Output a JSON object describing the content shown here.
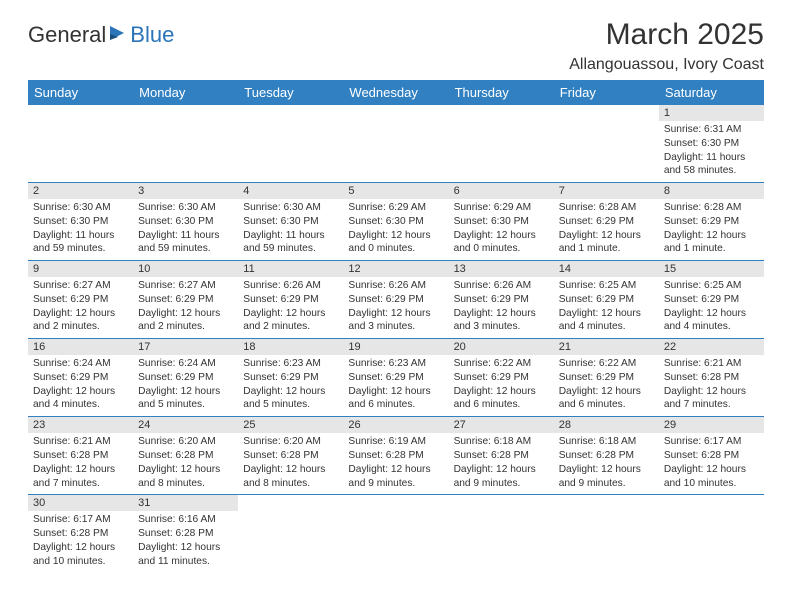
{
  "logo": {
    "general": "General",
    "blue": "Blue"
  },
  "title": "March 2025",
  "location": "Allangouassou, Ivory Coast",
  "header_color": "#3180c2",
  "daynum_bg": "#e6e6e6",
  "text_color": "#333333",
  "days": [
    "Sunday",
    "Monday",
    "Tuesday",
    "Wednesday",
    "Thursday",
    "Friday",
    "Saturday"
  ],
  "weeks": [
    [
      null,
      null,
      null,
      null,
      null,
      null,
      {
        "n": "1",
        "sr": "Sunrise: 6:31 AM",
        "ss": "Sunset: 6:30 PM",
        "dl": "Daylight: 11 hours and 58 minutes."
      }
    ],
    [
      {
        "n": "2",
        "sr": "Sunrise: 6:30 AM",
        "ss": "Sunset: 6:30 PM",
        "dl": "Daylight: 11 hours and 59 minutes."
      },
      {
        "n": "3",
        "sr": "Sunrise: 6:30 AM",
        "ss": "Sunset: 6:30 PM",
        "dl": "Daylight: 11 hours and 59 minutes."
      },
      {
        "n": "4",
        "sr": "Sunrise: 6:30 AM",
        "ss": "Sunset: 6:30 PM",
        "dl": "Daylight: 11 hours and 59 minutes."
      },
      {
        "n": "5",
        "sr": "Sunrise: 6:29 AM",
        "ss": "Sunset: 6:30 PM",
        "dl": "Daylight: 12 hours and 0 minutes."
      },
      {
        "n": "6",
        "sr": "Sunrise: 6:29 AM",
        "ss": "Sunset: 6:30 PM",
        "dl": "Daylight: 12 hours and 0 minutes."
      },
      {
        "n": "7",
        "sr": "Sunrise: 6:28 AM",
        "ss": "Sunset: 6:29 PM",
        "dl": "Daylight: 12 hours and 1 minute."
      },
      {
        "n": "8",
        "sr": "Sunrise: 6:28 AM",
        "ss": "Sunset: 6:29 PM",
        "dl": "Daylight: 12 hours and 1 minute."
      }
    ],
    [
      {
        "n": "9",
        "sr": "Sunrise: 6:27 AM",
        "ss": "Sunset: 6:29 PM",
        "dl": "Daylight: 12 hours and 2 minutes."
      },
      {
        "n": "10",
        "sr": "Sunrise: 6:27 AM",
        "ss": "Sunset: 6:29 PM",
        "dl": "Daylight: 12 hours and 2 minutes."
      },
      {
        "n": "11",
        "sr": "Sunrise: 6:26 AM",
        "ss": "Sunset: 6:29 PM",
        "dl": "Daylight: 12 hours and 2 minutes."
      },
      {
        "n": "12",
        "sr": "Sunrise: 6:26 AM",
        "ss": "Sunset: 6:29 PM",
        "dl": "Daylight: 12 hours and 3 minutes."
      },
      {
        "n": "13",
        "sr": "Sunrise: 6:26 AM",
        "ss": "Sunset: 6:29 PM",
        "dl": "Daylight: 12 hours and 3 minutes."
      },
      {
        "n": "14",
        "sr": "Sunrise: 6:25 AM",
        "ss": "Sunset: 6:29 PM",
        "dl": "Daylight: 12 hours and 4 minutes."
      },
      {
        "n": "15",
        "sr": "Sunrise: 6:25 AM",
        "ss": "Sunset: 6:29 PM",
        "dl": "Daylight: 12 hours and 4 minutes."
      }
    ],
    [
      {
        "n": "16",
        "sr": "Sunrise: 6:24 AM",
        "ss": "Sunset: 6:29 PM",
        "dl": "Daylight: 12 hours and 4 minutes."
      },
      {
        "n": "17",
        "sr": "Sunrise: 6:24 AM",
        "ss": "Sunset: 6:29 PM",
        "dl": "Daylight: 12 hours and 5 minutes."
      },
      {
        "n": "18",
        "sr": "Sunrise: 6:23 AM",
        "ss": "Sunset: 6:29 PM",
        "dl": "Daylight: 12 hours and 5 minutes."
      },
      {
        "n": "19",
        "sr": "Sunrise: 6:23 AM",
        "ss": "Sunset: 6:29 PM",
        "dl": "Daylight: 12 hours and 6 minutes."
      },
      {
        "n": "20",
        "sr": "Sunrise: 6:22 AM",
        "ss": "Sunset: 6:29 PM",
        "dl": "Daylight: 12 hours and 6 minutes."
      },
      {
        "n": "21",
        "sr": "Sunrise: 6:22 AM",
        "ss": "Sunset: 6:29 PM",
        "dl": "Daylight: 12 hours and 6 minutes."
      },
      {
        "n": "22",
        "sr": "Sunrise: 6:21 AM",
        "ss": "Sunset: 6:28 PM",
        "dl": "Daylight: 12 hours and 7 minutes."
      }
    ],
    [
      {
        "n": "23",
        "sr": "Sunrise: 6:21 AM",
        "ss": "Sunset: 6:28 PM",
        "dl": "Daylight: 12 hours and 7 minutes."
      },
      {
        "n": "24",
        "sr": "Sunrise: 6:20 AM",
        "ss": "Sunset: 6:28 PM",
        "dl": "Daylight: 12 hours and 8 minutes."
      },
      {
        "n": "25",
        "sr": "Sunrise: 6:20 AM",
        "ss": "Sunset: 6:28 PM",
        "dl": "Daylight: 12 hours and 8 minutes."
      },
      {
        "n": "26",
        "sr": "Sunrise: 6:19 AM",
        "ss": "Sunset: 6:28 PM",
        "dl": "Daylight: 12 hours and 9 minutes."
      },
      {
        "n": "27",
        "sr": "Sunrise: 6:18 AM",
        "ss": "Sunset: 6:28 PM",
        "dl": "Daylight: 12 hours and 9 minutes."
      },
      {
        "n": "28",
        "sr": "Sunrise: 6:18 AM",
        "ss": "Sunset: 6:28 PM",
        "dl": "Daylight: 12 hours and 9 minutes."
      },
      {
        "n": "29",
        "sr": "Sunrise: 6:17 AM",
        "ss": "Sunset: 6:28 PM",
        "dl": "Daylight: 12 hours and 10 minutes."
      }
    ],
    [
      {
        "n": "30",
        "sr": "Sunrise: 6:17 AM",
        "ss": "Sunset: 6:28 PM",
        "dl": "Daylight: 12 hours and 10 minutes."
      },
      {
        "n": "31",
        "sr": "Sunrise: 6:16 AM",
        "ss": "Sunset: 6:28 PM",
        "dl": "Daylight: 12 hours and 11 minutes."
      },
      null,
      null,
      null,
      null,
      null
    ]
  ]
}
